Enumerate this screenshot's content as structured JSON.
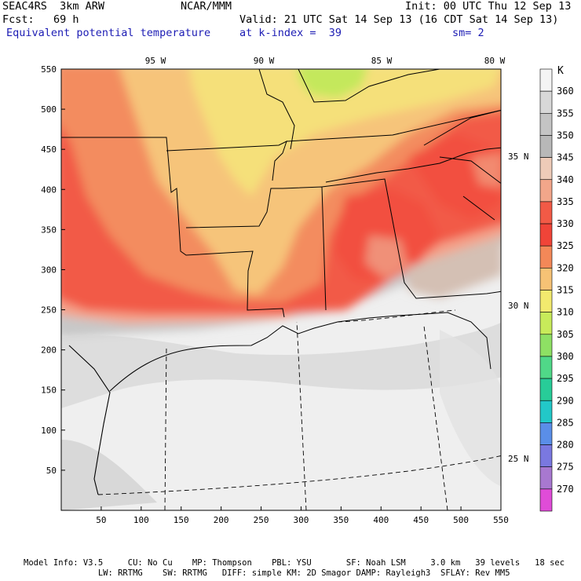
{
  "header": {
    "model": "SEAC4RS  3km ARW",
    "org": "NCAR/MMM",
    "init": "Init: 00 UTC Thu 12 Sep 13",
    "fcst": "Fcst:   69 h",
    "valid": "Valid: 21 UTC Sat 14 Sep 13 (16 CDT Sat 14 Sep 13)",
    "field": "Equivalent potential temperature",
    "level": "at k-index =  39",
    "smooth": "sm= 2"
  },
  "map": {
    "x_ticks": [
      "50",
      "100",
      "150",
      "200",
      "250",
      "300",
      "350",
      "400",
      "450",
      "500",
      "550"
    ],
    "y_ticks": [
      "50",
      "100",
      "150",
      "200",
      "250",
      "300",
      "350",
      "400",
      "450",
      "500",
      "550"
    ],
    "lon_labels": [
      "95 W",
      "90 W",
      "85 W",
      "80 W"
    ],
    "lat_labels": [
      "35 N",
      "30 N",
      "25 N"
    ]
  },
  "colorbar": {
    "unit": "K",
    "levels": [
      "360",
      "355",
      "350",
      "345",
      "340",
      "335",
      "330",
      "325",
      "320",
      "315",
      "310",
      "305",
      "300",
      "295",
      "290",
      "285",
      "280",
      "275",
      "270"
    ],
    "colors": [
      "#f4f4f4",
      "#d8d8d8",
      "#c4c4c4",
      "#b8b8b8",
      "#eecbb8",
      "#f2a68a",
      "#f25a46",
      "#f04438",
      "#f38858",
      "#f6c275",
      "#f2ea6e",
      "#c8eb5a",
      "#8ee064",
      "#50d888",
      "#28cc98",
      "#22c8c8",
      "#5a8ee8",
      "#7a78e0",
      "#a878d0",
      "#e04cd8"
    ]
  },
  "footer": {
    "line1": "Model Info: V3.5     CU: No Cu    MP: Thompson    PBL: YSU       SF: Noah LSM     3.0 km   39 levels   18 sec",
    "line2": "               LW: RRTMG    SW: RRTMG   DIFF: simple KM: 2D Smagor DAMP: Rayleigh3  SFLAY: Rev MM5"
  }
}
